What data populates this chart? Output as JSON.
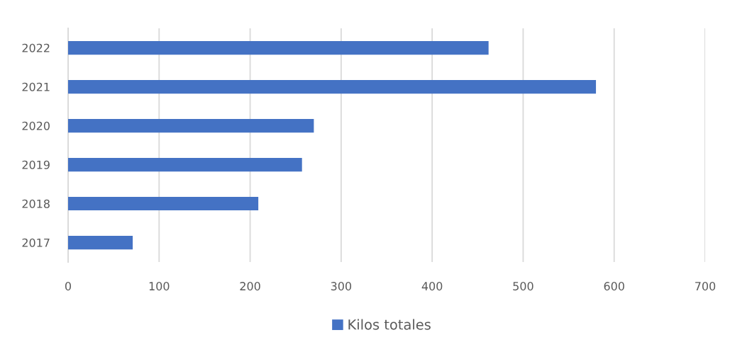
{
  "chart_data": {
    "type": "bar",
    "orientation": "horizontal",
    "categories": [
      "2022",
      "2021",
      "2020",
      "2019",
      "2018",
      "2017"
    ],
    "series": [
      {
        "name": "Kilos totales",
        "color": "#4472c4",
        "values": [
          462,
          580,
          270,
          257,
          209,
          71
        ]
      }
    ],
    "xlim": [
      0,
      700
    ],
    "xticks": [
      0,
      100,
      200,
      300,
      400,
      500,
      600,
      700
    ],
    "grid": "x",
    "legend": "bottom"
  }
}
